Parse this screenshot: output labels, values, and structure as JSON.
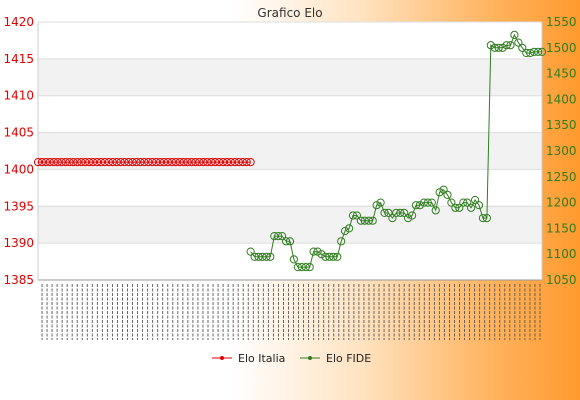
{
  "chart_data": {
    "type": "line",
    "title": "Grafico Elo",
    "legend_position": "bottom",
    "grid": true,
    "y_left": {
      "range": [
        1385,
        1420
      ],
      "ticks": [
        1385,
        1390,
        1395,
        1400,
        1405,
        1410,
        1415,
        1420
      ],
      "color": "#e00000"
    },
    "y_right": {
      "range": [
        1050,
        1550
      ],
      "ticks": [
        1050,
        1100,
        1150,
        1200,
        1250,
        1300,
        1350,
        1400,
        1450,
        1500,
        1550
      ],
      "color": "#2f7d1f"
    },
    "x_tick_count": 100,
    "series": [
      {
        "name": "Elo Italia",
        "axis": "left",
        "color": "#e00000",
        "x": [
          0,
          1,
          2,
          3,
          4,
          5,
          6,
          7,
          8,
          9,
          10,
          11,
          12,
          13,
          14,
          15,
          16,
          17,
          18,
          19,
          20,
          21,
          22,
          23,
          24,
          25,
          26,
          27,
          28,
          29,
          30,
          31,
          32,
          33,
          34,
          35,
          36,
          37,
          38,
          39,
          40,
          41,
          42,
          43,
          44,
          45,
          46,
          47,
          48,
          49,
          50,
          51,
          52,
          53,
          54
        ],
        "values": [
          1401,
          1401,
          1401,
          1401,
          1401,
          1401,
          1401,
          1401,
          1401,
          1401,
          1401,
          1401,
          1401,
          1401,
          1401,
          1401,
          1401,
          1401,
          1401,
          1401,
          1401,
          1401,
          1401,
          1401,
          1401,
          1401,
          1401,
          1401,
          1401,
          1401,
          1401,
          1401,
          1401,
          1401,
          1401,
          1401,
          1401,
          1401,
          1401,
          1401,
          1401,
          1401,
          1401,
          1401,
          1401,
          1401,
          1401,
          1401,
          1401,
          1401,
          1401,
          1401,
          1401,
          1401,
          1401
        ]
      },
      {
        "name": "Elo FIDE",
        "axis": "right",
        "color": "#2f7d1f",
        "x": [
          54,
          55,
          56,
          57,
          58,
          59,
          60,
          61,
          62,
          63,
          64,
          65,
          66,
          67,
          68,
          69,
          70,
          71,
          72,
          73,
          74,
          75,
          76,
          77,
          78,
          79,
          80,
          81,
          82,
          83,
          84,
          85,
          86,
          87,
          88,
          89,
          90,
          91,
          92,
          93,
          94,
          95,
          96,
          97,
          98,
          99,
          100,
          101,
          102,
          103,
          104,
          105,
          106,
          107,
          108,
          109,
          110,
          111,
          112,
          113,
          114,
          115,
          116,
          117,
          118,
          119,
          120,
          121,
          122,
          123,
          124,
          125,
          126,
          127,
          128
        ],
        "values": [
          1105,
          1095,
          1095,
          1095,
          1095,
          1095,
          1135,
          1135,
          1135,
          1125,
          1125,
          1090,
          1075,
          1075,
          1075,
          1075,
          1105,
          1105,
          1100,
          1095,
          1095,
          1095,
          1095,
          1125,
          1145,
          1150,
          1175,
          1175,
          1165,
          1165,
          1165,
          1165,
          1195,
          1200,
          1180,
          1180,
          1170,
          1180,
          1180,
          1180,
          1170,
          1175,
          1195,
          1195,
          1200,
          1200,
          1200,
          1185,
          1220,
          1225,
          1215,
          1200,
          1190,
          1190,
          1200,
          1200,
          1190,
          1205,
          1195,
          1170,
          1170,
          1505,
          1500,
          1500,
          1500,
          1505,
          1505,
          1525,
          1510,
          1500,
          1490,
          1490,
          1492,
          1492,
          1492
        ]
      }
    ],
    "markers": "open-circle"
  }
}
